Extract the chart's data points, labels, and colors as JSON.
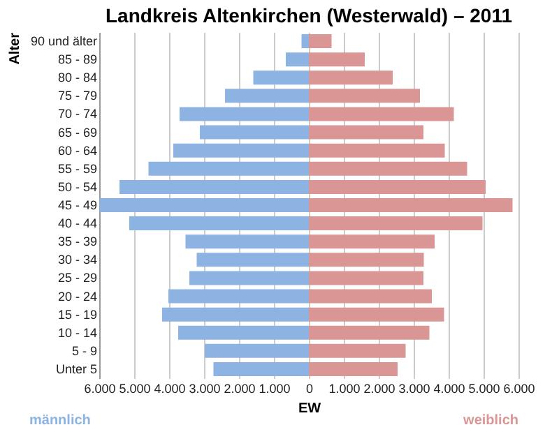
{
  "chart_data": {
    "type": "bar",
    "orientation": "horizontal",
    "title": "Landkreis Altenkirchen (Westerwald) – 2011",
    "xlabel": "EW",
    "ylabel": "Alter",
    "categories": [
      "90 und älter",
      "85 - 89",
      "80 - 84",
      "75 - 79",
      "70 - 74",
      "65 - 69",
      "60 - 64",
      "55 - 59",
      "50 - 54",
      "45 - 49",
      "40 - 44",
      "35 - 39",
      "30 - 34",
      "25 - 29",
      "20 - 24",
      "15 - 19",
      "10 - 14",
      "5 - 9",
      "Unter 5"
    ],
    "series": [
      {
        "name": "männlich",
        "color": "#8db3e2",
        "values": [
          -210,
          -660,
          -1590,
          -2400,
          -3700,
          -3120,
          -3880,
          -4590,
          -5420,
          -5990,
          -5140,
          -3530,
          -3210,
          -3420,
          -4020,
          -4200,
          -3740,
          -2980,
          -2730
        ]
      },
      {
        "name": "weiblich",
        "color": "#d99694",
        "values": [
          650,
          1600,
          2400,
          3180,
          4150,
          3280,
          3890,
          4530,
          5060,
          5830,
          4970,
          3600,
          3290,
          3280,
          3520,
          3870,
          3450,
          2770,
          2540
        ]
      }
    ],
    "xlim": [
      -6000,
      6000
    ],
    "xticks": [
      {
        "value": -6000,
        "label": "6.000"
      },
      {
        "value": -5000,
        "label": "5.000"
      },
      {
        "value": -4000,
        "label": "4.000"
      },
      {
        "value": -3000,
        "label": "3.000"
      },
      {
        "value": -2000,
        "label": "2.000"
      },
      {
        "value": -1000,
        "label": "1.000"
      },
      0,
      {
        "value": 1000,
        "label": "1.000"
      },
      {
        "value": 2000,
        "label": "2.000"
      },
      {
        "value": 3000,
        "label": "3.000"
      },
      {
        "value": 4000,
        "label": "4.000"
      },
      {
        "value": 5000,
        "label": "5.000"
      },
      {
        "value": 6000,
        "label": "6.000"
      }
    ],
    "grid": "x",
    "stacked": true
  }
}
